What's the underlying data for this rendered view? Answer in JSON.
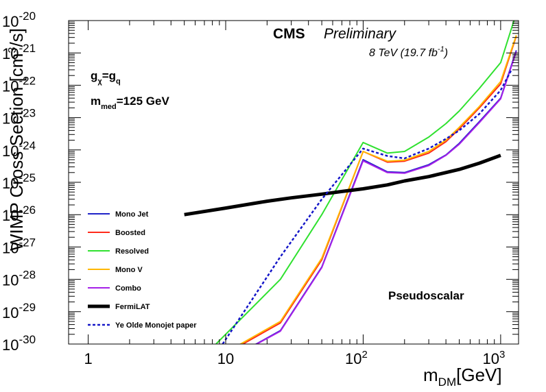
{
  "colors": {
    "background": "#ffffff",
    "frame": "#000000",
    "monojet": "#1e22c8",
    "boosted": "#ff2a1a",
    "resolved": "#2fe12f",
    "monov": "#ffb700",
    "combo": "#a51fe8",
    "fermilat": "#000000",
    "oldpaper": "#1416c8"
  },
  "header": {
    "experiment": "CMS",
    "status": "Preliminary",
    "energy": "8 TeV (19.7 fb",
    "energy_sup": "-1",
    "energy_close": ")"
  },
  "annotations": {
    "coupling_g1": "g",
    "coupling_sub1": "χ",
    "coupling_eq": "=g",
    "coupling_sub2": "q",
    "mass_m": "m",
    "mass_sub": "med",
    "mass_val": "=125 GeV",
    "scenario": "Pseudoscalar"
  },
  "chart_data": {
    "type": "line",
    "x_log": true,
    "y_log": true,
    "xlim": [
      0.72,
      1350
    ],
    "ylim": [
      1e-30,
      1e-20
    ],
    "xlabel": "m",
    "xlabel_sub": "DM",
    "xlabel_unit": "[GeV]",
    "ylabel": "WIMP Cross Section [cm",
    "ylabel_sup": "3",
    "ylabel_unit": "/s]",
    "x_ticks": [
      {
        "value": 1,
        "base": "1",
        "exp": ""
      },
      {
        "value": 10,
        "base": "10",
        "exp": ""
      },
      {
        "value": 100,
        "base": "10",
        "exp": "2"
      },
      {
        "value": 1000,
        "base": "10",
        "exp": "3"
      }
    ],
    "y_ticks": [
      {
        "value": 1e-30,
        "base": "10",
        "exp": "-30"
      },
      {
        "value": 1e-29,
        "base": "10",
        "exp": "-29"
      },
      {
        "value": 1e-28,
        "base": "10",
        "exp": "-28"
      },
      {
        "value": 1e-27,
        "base": "10",
        "exp": "-27"
      },
      {
        "value": 1e-26,
        "base": "10",
        "exp": "-26"
      },
      {
        "value": 1e-25,
        "base": "10",
        "exp": "-25"
      },
      {
        "value": 1e-24,
        "base": "10",
        "exp": "-24"
      },
      {
        "value": 1e-23,
        "base": "10",
        "exp": "-23"
      },
      {
        "value": 1e-22,
        "base": "10",
        "exp": "-22"
      },
      {
        "value": 1e-21,
        "base": "10",
        "exp": "-21"
      },
      {
        "value": 1e-20,
        "base": "10",
        "exp": "-20"
      }
    ],
    "grid": false,
    "legend_position": "left",
    "series": [
      {
        "name": "Mono Jet",
        "color_key": "monojet",
        "style": "solid",
        "x": [
          10,
          25,
          50,
          100,
          150,
          200,
          300,
          400,
          500,
          700,
          1000,
          1300
        ],
        "y": [
          3e-31,
          2.6e-30,
          2.4e-28,
          5e-25,
          2.1e-25,
          2e-25,
          3.5e-25,
          7e-25,
          1.6e-24,
          7.5e-24,
          4e-23,
          1.2e-21
        ]
      },
      {
        "name": "Boosted",
        "color_key": "boosted",
        "style": "solid",
        "x": [
          10,
          25,
          50,
          100,
          150,
          200,
          300,
          400,
          500,
          700,
          1000,
          1300
        ],
        "y": [
          5e-31,
          4.5e-30,
          4e-28,
          9e-25,
          4.2e-25,
          4.5e-25,
          8e-25,
          1.8e-24,
          4.5e-24,
          2e-23,
          1.1e-22,
          3.3e-21
        ]
      },
      {
        "name": "Resolved",
        "color_key": "resolved",
        "style": "solid",
        "x": [
          8.5,
          25,
          50,
          100,
          150,
          200,
          300,
          400,
          500,
          700,
          1000,
          1250
        ],
        "y": [
          1e-30,
          1e-28,
          1e-26,
          1.7e-24,
          8e-25,
          9e-25,
          2.5e-24,
          6.5e-24,
          1.6e-23,
          8e-23,
          5e-22,
          1e-20
        ]
      },
      {
        "name": "Mono V",
        "color_key": "monov",
        "style": "solid",
        "x": [
          10,
          25,
          50,
          100,
          150,
          200,
          300,
          400,
          500,
          700,
          1000,
          1300
        ],
        "y": [
          5.5e-31,
          5e-30,
          4.5e-28,
          9e-25,
          4.5e-25,
          4.8e-25,
          9e-25,
          2e-24,
          5e-24,
          2.2e-23,
          1.3e-22,
          3.5e-21
        ]
      },
      {
        "name": "Combo",
        "color_key": "combo",
        "style": "solid",
        "x": [
          10,
          25,
          50,
          100,
          150,
          200,
          300,
          400,
          500,
          700,
          1000,
          1300
        ],
        "y": [
          3e-31,
          2.5e-30,
          2.3e-28,
          4.6e-25,
          2e-25,
          1.9e-25,
          3.3e-25,
          6.8e-25,
          1.5e-24,
          7e-24,
          3.8e-23,
          1.1e-21
        ]
      },
      {
        "name": "FermiLAT",
        "color_key": "fermilat",
        "style": "thick",
        "x": [
          5,
          10,
          20,
          30,
          50,
          70,
          100,
          150,
          200,
          300,
          500,
          700,
          1000
        ],
        "y": [
          1e-26,
          1.6e-26,
          2.6e-26,
          3.3e-26,
          4.3e-26,
          5.2e-26,
          6.3e-26,
          8.3e-26,
          1.1e-25,
          1.5e-25,
          2.5e-25,
          3.9e-25,
          6.8e-25
        ]
      },
      {
        "name": "Ye Olde Monojet paper",
        "color_key": "oldpaper",
        "style": "dotted",
        "x": [
          9.5,
          25,
          50,
          100,
          150,
          200,
          300,
          400,
          500,
          700,
          1000,
          1200
        ],
        "y": [
          1e-30,
          5e-28,
          3e-26,
          1.1e-24,
          6.5e-25,
          5.5e-25,
          1.1e-24,
          2.2e-24,
          4e-24,
          1.3e-23,
          7e-23,
          3e-22
        ]
      }
    ]
  }
}
